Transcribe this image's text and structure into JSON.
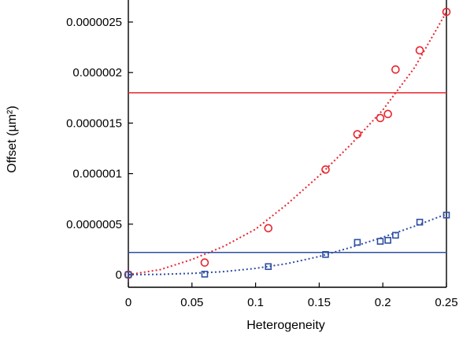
{
  "chart_data": {
    "type": "scatter",
    "xlabel": "Heterogeneity",
    "ylabel": "Offset (µm²)",
    "xlim": [
      0,
      0.25
    ],
    "ylim": [
      0,
      2.6e-06
    ],
    "x_ticks": [
      0,
      0.05,
      0.1,
      0.15,
      0.2,
      0.25
    ],
    "x_tick_labels": [
      "0",
      "0.05",
      "0.1",
      "0.15",
      "0.2",
      "0.25"
    ],
    "y_ticks": [
      0,
      5e-07,
      1e-06,
      1.5e-06,
      2e-06,
      2.5e-06
    ],
    "y_tick_labels": [
      "0",
      "0.0000005",
      "0.000001",
      "0.0000015",
      "0.000002",
      "0.0000025"
    ],
    "grid": false,
    "legend": "none",
    "series": [
      {
        "marker": "circle",
        "color": "#e8252e",
        "x": [
          0,
          0.06,
          0.11,
          0.155,
          0.18,
          0.198,
          0.204,
          0.21,
          0.229,
          0.25
        ],
        "y": [
          0,
          1.2e-07,
          4.6e-07,
          1.04e-06,
          1.39e-06,
          1.55e-06,
          1.59e-06,
          2.03e-06,
          2.22e-06,
          2.6e-06
        ],
        "fit": {
          "style": "dotted",
          "x": [
            0,
            0.025,
            0.05,
            0.075,
            0.1,
            0.125,
            0.15,
            0.175,
            0.2,
            0.225,
            0.25
          ],
          "y": [
            0,
            5e-08,
            1.5e-07,
            2.8e-07,
            4.5e-07,
            7e-07,
            9.8e-07,
            1.29e-06,
            1.63e-06,
            2.05e-06,
            2.6e-06
          ]
        },
        "reference_line": 1.8e-06
      },
      {
        "marker": "square",
        "color": "#2f4fa2",
        "x": [
          0,
          0.06,
          0.11,
          0.155,
          0.18,
          0.198,
          0.204,
          0.21,
          0.229,
          0.25
        ],
        "y": [
          0,
          5e-09,
          8e-08,
          2e-07,
          3.2e-07,
          3.3e-07,
          3.4e-07,
          3.9e-07,
          5.2e-07,
          5.9e-07
        ],
        "fit": {
          "style": "dotted",
          "x": [
            0,
            0.025,
            0.05,
            0.075,
            0.1,
            0.125,
            0.15,
            0.175,
            0.2,
            0.225,
            0.25
          ],
          "y": [
            0,
            3e-09,
            1.3e-08,
            3e-08,
            6.2e-08,
            1.1e-07,
            1.8e-07,
            2.7e-07,
            3.7e-07,
            4.8e-07,
            6e-07
          ]
        },
        "reference_line": 2.2e-07
      }
    ]
  }
}
